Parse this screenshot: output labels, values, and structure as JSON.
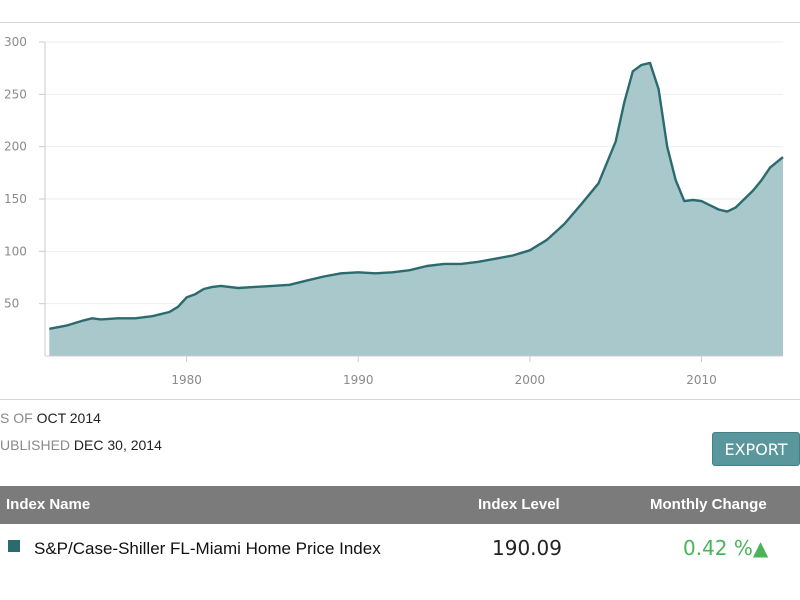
{
  "chart_data": {
    "type": "area",
    "title": "",
    "xlabel": "",
    "ylabel": "",
    "xlim": [
      1971.75,
      2014.75
    ],
    "ylim": [
      0,
      300
    ],
    "y_ticks": [
      "300",
      "250",
      "200",
      "150",
      "100",
      "50"
    ],
    "x_ticks": [
      "1980",
      "1990",
      "2000",
      "2010"
    ],
    "grid": true,
    "series_color": "#2b6b6f",
    "fill_color": "#a8c8cb",
    "series": [
      {
        "x": [
          1972.0,
          1973.0,
          1974.0,
          1974.5,
          1975.0,
          1976.0,
          1977.0,
          1978.0,
          1979.0,
          1979.5,
          1980.0,
          1980.5,
          1981.0,
          1981.5,
          1982.0,
          1983.0,
          1984.0,
          1985.0,
          1986.0,
          1987.0,
          1988.0,
          1989.0,
          1990.0,
          1991.0,
          1992.0,
          1993.0,
          1994.0,
          1995.0,
          1996.0,
          1997.0,
          1998.0,
          1999.0,
          2000.0,
          2001.0,
          2002.0,
          2003.0,
          2004.0,
          2005.0,
          2005.5,
          2006.0,
          2006.5,
          2007.0,
          2007.5,
          2008.0,
          2008.5,
          2009.0,
          2009.5,
          2010.0,
          2010.5,
          2011.0,
          2011.5,
          2012.0,
          2012.5,
          2013.0,
          2013.5,
          2014.0,
          2014.75
        ],
        "y": [
          26,
          29,
          34,
          36,
          35,
          36,
          36,
          38,
          42,
          47,
          56,
          59,
          64,
          66,
          67,
          65,
          66,
          67,
          68,
          72,
          76,
          79,
          80,
          79,
          80,
          82,
          86,
          88,
          88,
          90,
          93,
          96,
          101,
          111,
          126,
          145,
          165,
          205,
          242,
          272,
          278,
          280,
          255,
          200,
          168,
          148,
          149,
          148,
          144,
          140,
          138,
          142,
          150,
          158,
          168,
          180,
          190
        ]
      }
    ],
    "as_of_label": "S OF",
    "as_of_value": "OCT 2014",
    "published_label": "UBLISHED",
    "published_value": "DEC 30, 2014"
  },
  "export_label": "EXPORT",
  "table": {
    "headers": {
      "name": "Index Name",
      "level": "Index Level",
      "change": "Monthly Change"
    },
    "row": {
      "name": "S&P/Case-Shiller FL-Miami Home Price Index",
      "level": "190.09",
      "change": "0.42 %",
      "change_arrow": "▲",
      "swatch_color": "#2b6b6f",
      "change_color": "#4ab45a"
    }
  }
}
